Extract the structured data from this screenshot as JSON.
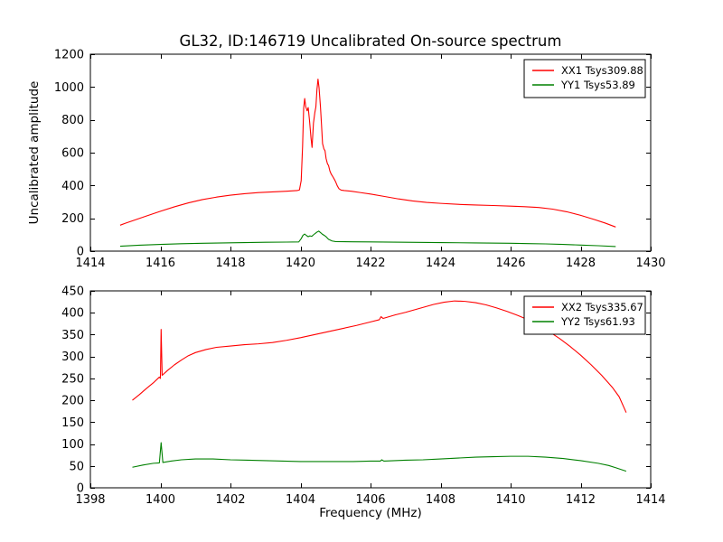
{
  "chart_data": [
    {
      "type": "line",
      "name": "top-spectrum",
      "title": "GL32, ID:146719 Uncalibrated On-source spectrum",
      "ylabel": "Uncalibrated amplitude",
      "xlim": [
        1414,
        1430
      ],
      "ylim": [
        0,
        1200
      ],
      "xticks": [
        1414,
        1416,
        1418,
        1420,
        1422,
        1424,
        1426,
        1428,
        1430
      ],
      "yticks": [
        0,
        200,
        400,
        600,
        800,
        1000,
        1200
      ],
      "grid": false,
      "legend_position": "upper right",
      "series": [
        {
          "name": "XX1",
          "label": "XX1 Tsys309.88",
          "color": "#ff0000",
          "points": [
            [
              1414.85,
              158
            ],
            [
              1415.0,
              170
            ],
            [
              1415.3,
              192
            ],
            [
              1415.6,
              214
            ],
            [
              1416.0,
              243
            ],
            [
              1416.4,
              270
            ],
            [
              1416.8,
              294
            ],
            [
              1417.2,
              314
            ],
            [
              1417.6,
              329
            ],
            [
              1418.0,
              341
            ],
            [
              1418.4,
              350
            ],
            [
              1418.8,
              357
            ],
            [
              1419.2,
              361
            ],
            [
              1419.6,
              365
            ],
            [
              1419.9,
              369
            ],
            [
              1419.97,
              373
            ],
            [
              1420.02,
              430
            ],
            [
              1420.06,
              640
            ],
            [
              1420.09,
              870
            ],
            [
              1420.12,
              930
            ],
            [
              1420.15,
              880
            ],
            [
              1420.19,
              855
            ],
            [
              1420.22,
              875
            ],
            [
              1420.26,
              790
            ],
            [
              1420.3,
              690
            ],
            [
              1420.33,
              632
            ],
            [
              1420.37,
              780
            ],
            [
              1420.41,
              845
            ],
            [
              1420.44,
              880
            ],
            [
              1420.47,
              985
            ],
            [
              1420.5,
              1048
            ],
            [
              1420.53,
              995
            ],
            [
              1420.57,
              880
            ],
            [
              1420.6,
              770
            ],
            [
              1420.63,
              655
            ],
            [
              1420.67,
              622
            ],
            [
              1420.7,
              612
            ],
            [
              1420.73,
              565
            ],
            [
              1420.77,
              532
            ],
            [
              1420.8,
              522
            ],
            [
              1420.84,
              488
            ],
            [
              1420.88,
              468
            ],
            [
              1420.92,
              455
            ],
            [
              1420.96,
              440
            ],
            [
              1421.0,
              424
            ],
            [
              1421.05,
              398
            ],
            [
              1421.1,
              380
            ],
            [
              1421.16,
              372
            ],
            [
              1421.25,
              369
            ],
            [
              1421.45,
              365
            ],
            [
              1421.7,
              357
            ],
            [
              1422.0,
              348
            ],
            [
              1422.4,
              333
            ],
            [
              1422.8,
              318
            ],
            [
              1423.2,
              306
            ],
            [
              1423.6,
              297
            ],
            [
              1424.0,
              291
            ],
            [
              1424.5,
              285
            ],
            [
              1425.0,
              281
            ],
            [
              1425.5,
              278
            ],
            [
              1426.0,
              274
            ],
            [
              1426.4,
              271
            ],
            [
              1426.8,
              266
            ],
            [
              1427.2,
              256
            ],
            [
              1427.6,
              240
            ],
            [
              1428.0,
              218
            ],
            [
              1428.4,
              192
            ],
            [
              1428.7,
              171
            ],
            [
              1429.0,
              147
            ]
          ]
        },
        {
          "name": "YY1",
          "label": "YY1 Tsys53.89",
          "color": "#008000",
          "points": [
            [
              1414.85,
              30
            ],
            [
              1415.4,
              36
            ],
            [
              1416.0,
              41
            ],
            [
              1416.6,
              45
            ],
            [
              1417.2,
              48
            ],
            [
              1417.8,
              50
            ],
            [
              1418.4,
              52
            ],
            [
              1419.0,
              54
            ],
            [
              1419.6,
              55
            ],
            [
              1419.95,
              56
            ],
            [
              1420.02,
              76
            ],
            [
              1420.07,
              96
            ],
            [
              1420.12,
              104
            ],
            [
              1420.17,
              95
            ],
            [
              1420.22,
              88
            ],
            [
              1420.27,
              93
            ],
            [
              1420.32,
              90
            ],
            [
              1420.37,
              99
            ],
            [
              1420.42,
              108
            ],
            [
              1420.47,
              116
            ],
            [
              1420.52,
              122
            ],
            [
              1420.57,
              113
            ],
            [
              1420.62,
              104
            ],
            [
              1420.67,
              97
            ],
            [
              1420.72,
              90
            ],
            [
              1420.8,
              72
            ],
            [
              1420.9,
              62
            ],
            [
              1421.0,
              58
            ],
            [
              1421.5,
              57
            ],
            [
              1422.0,
              56
            ],
            [
              1423.0,
              54
            ],
            [
              1424.0,
              52
            ],
            [
              1425.0,
              50
            ],
            [
              1426.0,
              48
            ],
            [
              1426.5,
              46
            ],
            [
              1427.0,
              44
            ],
            [
              1427.5,
              41
            ],
            [
              1428.0,
              37
            ],
            [
              1428.5,
              33
            ],
            [
              1429.0,
              28
            ]
          ]
        }
      ]
    },
    {
      "type": "line",
      "name": "bottom-spectrum",
      "xlabel": "Frequency (MHz)",
      "xlim": [
        1398,
        1414
      ],
      "ylim": [
        0,
        450
      ],
      "xticks": [
        1398,
        1400,
        1402,
        1404,
        1406,
        1408,
        1410,
        1412,
        1414
      ],
      "yticks": [
        0,
        50,
        100,
        150,
        200,
        250,
        300,
        350,
        400,
        450
      ],
      "grid": false,
      "legend_position": "upper right",
      "series": [
        {
          "name": "XX2",
          "label": "XX2 Tsys335.67",
          "color": "#ff0000",
          "points": [
            [
              1399.2,
              200
            ],
            [
              1399.4,
              213
            ],
            [
              1399.6,
              227
            ],
            [
              1399.8,
              240
            ],
            [
              1399.97,
              253
            ],
            [
              1400.0,
              250
            ],
            [
              1400.02,
              362
            ],
            [
              1400.05,
              257
            ],
            [
              1400.2,
              268
            ],
            [
              1400.4,
              281
            ],
            [
              1400.6,
              292
            ],
            [
              1400.8,
              302
            ],
            [
              1401.0,
              309
            ],
            [
              1401.3,
              316
            ],
            [
              1401.6,
              321
            ],
            [
              1402.0,
              324
            ],
            [
              1402.4,
              327
            ],
            [
              1402.8,
              329
            ],
            [
              1403.2,
              332
            ],
            [
              1403.6,
              337
            ],
            [
              1404.0,
              343
            ],
            [
              1404.4,
              350
            ],
            [
              1404.8,
              357
            ],
            [
              1405.2,
              364
            ],
            [
              1405.6,
              371
            ],
            [
              1406.0,
              379
            ],
            [
              1406.25,
              384
            ],
            [
              1406.3,
              391
            ],
            [
              1406.36,
              387
            ],
            [
              1406.7,
              395
            ],
            [
              1407.0,
              401
            ],
            [
              1407.4,
              410
            ],
            [
              1407.8,
              419
            ],
            [
              1408.1,
              424
            ],
            [
              1408.4,
              427
            ],
            [
              1408.7,
              426
            ],
            [
              1409.0,
              423
            ],
            [
              1409.3,
              418
            ],
            [
              1409.6,
              411
            ],
            [
              1409.9,
              403
            ],
            [
              1410.2,
              394
            ],
            [
              1410.5,
              384
            ],
            [
              1410.8,
              371
            ],
            [
              1411.1,
              357
            ],
            [
              1411.4,
              341
            ],
            [
              1411.7,
              323
            ],
            [
              1412.0,
              303
            ],
            [
              1412.3,
              281
            ],
            [
              1412.6,
              257
            ],
            [
              1412.9,
              230
            ],
            [
              1413.1,
              208
            ],
            [
              1413.3,
              172
            ]
          ]
        },
        {
          "name": "YY2",
          "label": "YY2 Tsys61.93",
          "color": "#008000",
          "points": [
            [
              1399.2,
              47
            ],
            [
              1399.5,
              52
            ],
            [
              1399.8,
              56
            ],
            [
              1399.97,
              57
            ],
            [
              1400.02,
              103
            ],
            [
              1400.07,
              58
            ],
            [
              1400.3,
              61
            ],
            [
              1400.6,
              64
            ],
            [
              1401.0,
              66
            ],
            [
              1401.5,
              66
            ],
            [
              1402.0,
              64
            ],
            [
              1402.5,
              63
            ],
            [
              1403.0,
              62
            ],
            [
              1403.5,
              61
            ],
            [
              1404.0,
              60
            ],
            [
              1404.5,
              60
            ],
            [
              1405.0,
              60
            ],
            [
              1405.5,
              60
            ],
            [
              1406.0,
              61
            ],
            [
              1406.28,
              61
            ],
            [
              1406.32,
              64
            ],
            [
              1406.38,
              61
            ],
            [
              1407.0,
              63
            ],
            [
              1407.5,
              64
            ],
            [
              1408.0,
              66
            ],
            [
              1408.5,
              68
            ],
            [
              1409.0,
              70
            ],
            [
              1409.5,
              71
            ],
            [
              1410.0,
              72
            ],
            [
              1410.5,
              72
            ],
            [
              1411.0,
              70
            ],
            [
              1411.5,
              67
            ],
            [
              1412.0,
              62
            ],
            [
              1412.5,
              56
            ],
            [
              1412.8,
              51
            ],
            [
              1413.0,
              46
            ],
            [
              1413.3,
              38
            ]
          ]
        }
      ]
    }
  ],
  "style": {
    "axis_color": "#000000",
    "background": "#ffffff",
    "xx_color": "#ff0000",
    "yy_color": "#008000"
  }
}
